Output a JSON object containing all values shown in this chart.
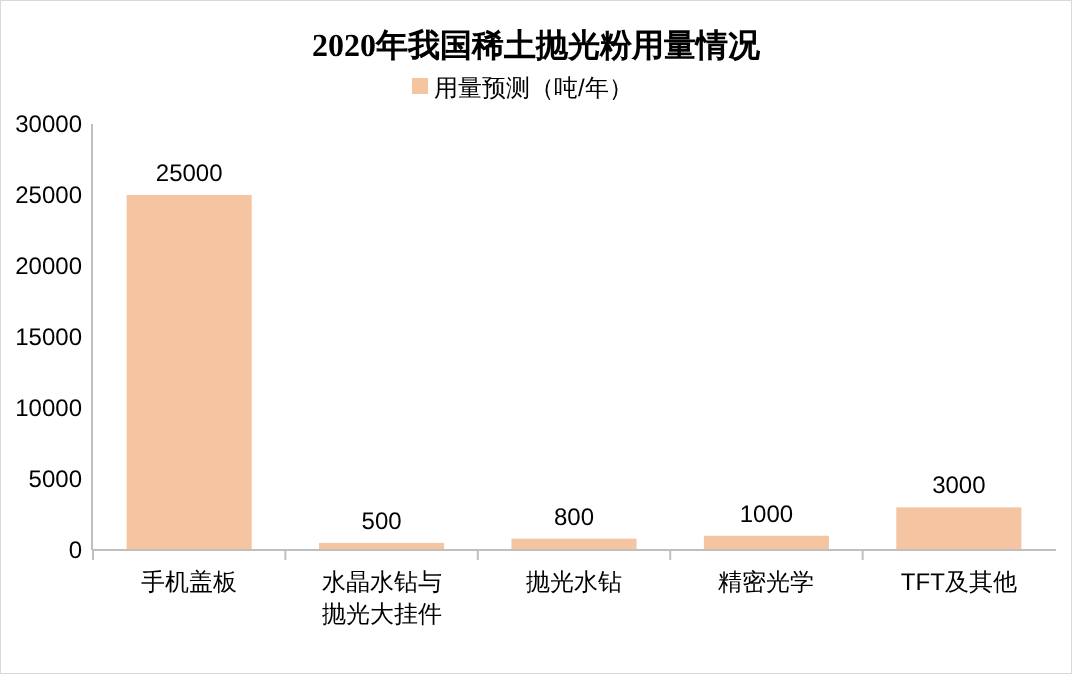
{
  "chart_data": {
    "type": "bar",
    "title": "2020年我国稀土抛光粉用量情况",
    "categories": [
      "手机盖板",
      "水晶水钻与抛光大挂件",
      "抛光水钻",
      "精密光学",
      "TFT及其他"
    ],
    "series": [
      {
        "name": "用量预测（吨/年）",
        "color": "#f5c4a0",
        "values": [
          25000,
          500,
          800,
          1000,
          3000
        ]
      }
    ],
    "ylim": [
      0,
      30000
    ],
    "yticks": [
      0,
      5000,
      10000,
      15000,
      20000,
      25000,
      30000
    ],
    "data_labels": true,
    "legend": "top",
    "grid": false
  }
}
